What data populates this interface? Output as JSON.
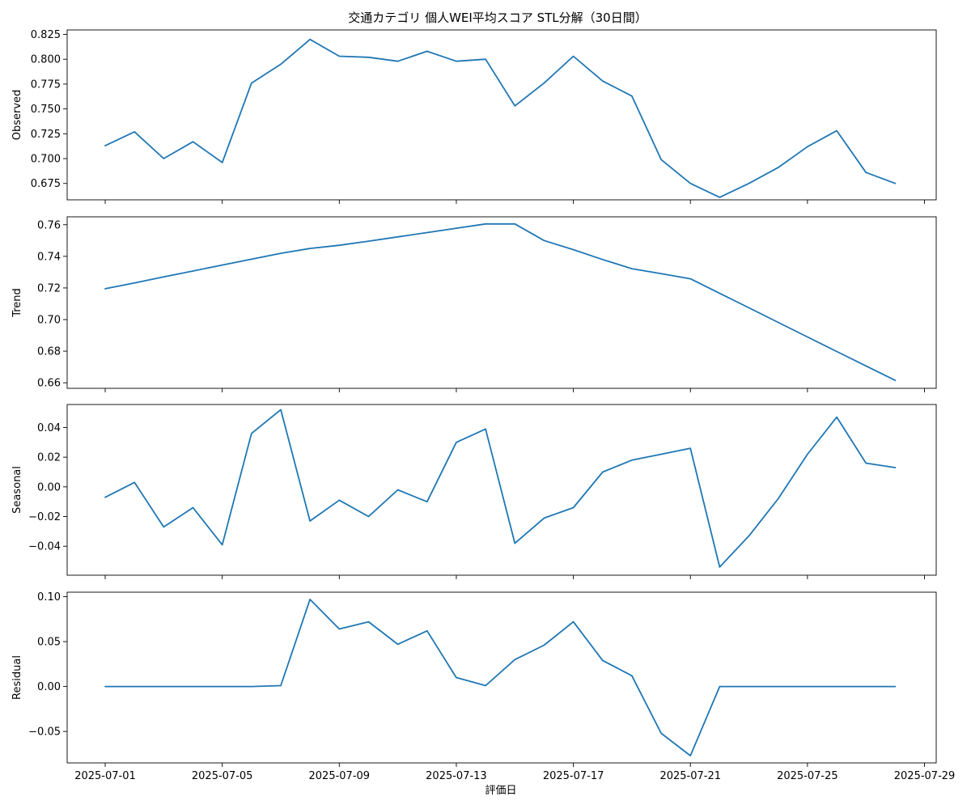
{
  "chart_data": {
    "type": "line",
    "title": "交通カテゴリ 個人WEI平均スコア STL分解（30日間）",
    "xlabel": "評価日",
    "x": [
      "2025-07-01",
      "2025-07-02",
      "2025-07-03",
      "2025-07-04",
      "2025-07-05",
      "2025-07-06",
      "2025-07-07",
      "2025-07-08",
      "2025-07-09",
      "2025-07-10",
      "2025-07-11",
      "2025-07-12",
      "2025-07-13",
      "2025-07-14",
      "2025-07-15",
      "2025-07-16",
      "2025-07-17",
      "2025-07-18",
      "2025-07-19",
      "2025-07-20",
      "2025-07-21",
      "2025-07-22",
      "2025-07-23",
      "2025-07-24",
      "2025-07-25",
      "2025-07-26",
      "2025-07-27",
      "2025-07-28"
    ],
    "xlim": [
      "2025-06-29.7",
      "2025-07-29.4"
    ],
    "xticks": [
      "2025-07-01",
      "2025-07-05",
      "2025-07-09",
      "2025-07-13",
      "2025-07-17",
      "2025-07-21",
      "2025-07-25",
      "2025-07-29"
    ],
    "panels": [
      {
        "name": "Observed",
        "ylabel": "Observed",
        "ylim": [
          0.6585,
          0.8295
        ],
        "yticks": [
          0.675,
          0.7,
          0.725,
          0.75,
          0.775,
          0.8,
          0.825
        ],
        "ytick_labels": [
          "0.675",
          "0.700",
          "0.725",
          "0.750",
          "0.775",
          "0.800",
          "0.825"
        ],
        "values": [
          0.713,
          0.727,
          0.7,
          0.717,
          0.696,
          0.776,
          0.795,
          0.82,
          0.803,
          0.802,
          0.798,
          0.808,
          0.798,
          0.8,
          0.753,
          0.776,
          0.803,
          0.778,
          0.763,
          0.699,
          0.675,
          0.661,
          0.675,
          0.691,
          0.712,
          0.728,
          0.686,
          0.675
        ]
      },
      {
        "name": "Trend",
        "ylabel": "Trend",
        "ylim": [
          0.6565,
          0.765
        ],
        "yticks": [
          0.66,
          0.68,
          0.7,
          0.72,
          0.74,
          0.76
        ],
        "ytick_labels": [
          "0.66",
          "0.68",
          "0.70",
          "0.72",
          "0.74",
          "0.76"
        ],
        "values": [
          0.7195,
          0.7232,
          0.727,
          0.7307,
          0.7345,
          0.7382,
          0.7419,
          0.745,
          0.747,
          0.7496,
          0.7523,
          0.755,
          0.7578,
          0.7605,
          0.7605,
          0.75,
          0.7442,
          0.738,
          0.7322,
          0.729,
          0.7258,
          0.7166,
          0.7074,
          0.6982,
          0.689,
          0.6798,
          0.6707,
          0.6615
        ]
      },
      {
        "name": "Seasonal",
        "ylabel": "Seasonal",
        "ylim": [
          -0.0595,
          0.0555
        ],
        "yticks": [
          -0.04,
          -0.02,
          0.0,
          0.02,
          0.04
        ],
        "ytick_labels": [
          "−0.04",
          "−0.02",
          "0.00",
          "0.02",
          "0.04"
        ],
        "values": [
          -0.007,
          0.003,
          -0.027,
          -0.014,
          -0.039,
          0.036,
          0.052,
          -0.023,
          -0.009,
          -0.02,
          -0.002,
          -0.01,
          0.03,
          0.039,
          -0.038,
          -0.021,
          -0.014,
          0.01,
          0.018,
          0.022,
          0.026,
          -0.054,
          -0.033,
          -0.008,
          0.022,
          0.047,
          0.016,
          0.013
        ]
      },
      {
        "name": "Residual",
        "ylabel": "Residual",
        "ylim": [
          -0.085,
          0.105
        ],
        "yticks": [
          -0.05,
          0.0,
          0.05,
          0.1
        ],
        "ytick_labels": [
          "−0.05",
          "0.00",
          "0.05",
          "0.10"
        ],
        "values": [
          0.0,
          0.0,
          0.0,
          0.0,
          0.0,
          0.0,
          0.001,
          0.097,
          0.064,
          0.072,
          0.047,
          0.062,
          0.01,
          0.001,
          0.03,
          0.046,
          0.072,
          0.029,
          0.012,
          -0.052,
          -0.077,
          0.0,
          0.0,
          0.0,
          0.0,
          0.0,
          0.0,
          0.0
        ]
      }
    ]
  },
  "colors": {
    "line": "#1f77b4",
    "axes": "#000000"
  }
}
